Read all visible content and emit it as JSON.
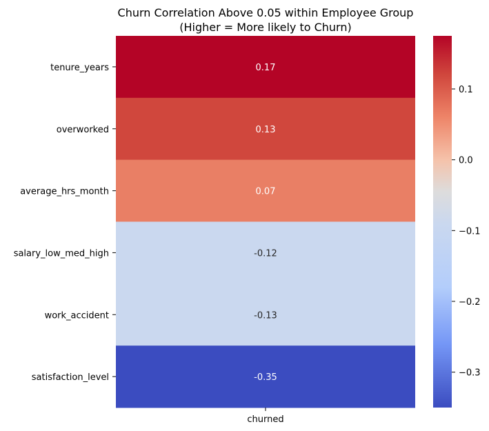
{
  "chart_data": {
    "type": "heatmap",
    "title": "Churn Correlation Above 0.05 within Employee Group\n(Higher = More likely to Churn)",
    "title_lines": [
      "Churn Correlation Above 0.05 within Employee Group",
      "(Higher = More likely to Churn)"
    ],
    "xlabel": "",
    "ylabel": "",
    "columns": [
      "churned"
    ],
    "rows": [
      "tenure_years",
      "overworked",
      "average_hrs_month",
      "salary_low_med_high",
      "work_accident",
      "satisfaction_level"
    ],
    "values": [
      0.17,
      0.13,
      0.07,
      -0.12,
      -0.13,
      -0.35
    ],
    "value_labels": [
      "0.17",
      "0.13",
      "0.07",
      "-0.12",
      "-0.13",
      "-0.35"
    ],
    "colormap": "coolwarm",
    "vmin": -0.35,
    "vmax": 0.175,
    "cell_colors": [
      "#b40426",
      "#d0473d",
      "#e97f65",
      "#cad8ef",
      "#cad8ef",
      "#3b4cc0"
    ],
    "cell_text_colors": [
      "#ffffff",
      "#ffffff",
      "#ffffff",
      "#262626",
      "#262626",
      "#ffffff"
    ],
    "colorbar": {
      "ticks": [
        0.1,
        0.0,
        -0.1,
        -0.2,
        -0.3
      ],
      "tick_labels": [
        "0.1",
        "0.0",
        "−0.1",
        "−0.2",
        "−0.3"
      ],
      "gradient_stops": [
        {
          "value": 0.175,
          "color": "#b40426"
        },
        {
          "value": 0.12,
          "color": "#d0473d"
        },
        {
          "value": 0.06,
          "color": "#ee8468"
        },
        {
          "value": 0.0,
          "color": "#f5c2aa"
        },
        {
          "value": -0.045,
          "color": "#dddcdc"
        },
        {
          "value": -0.09,
          "color": "#cad8ef"
        },
        {
          "value": -0.18,
          "color": "#b3cdfb"
        },
        {
          "value": -0.26,
          "color": "#7597f6"
        },
        {
          "value": -0.35,
          "color": "#3b4cc0"
        }
      ]
    },
    "grid": false,
    "legend": "colorbar-right"
  }
}
